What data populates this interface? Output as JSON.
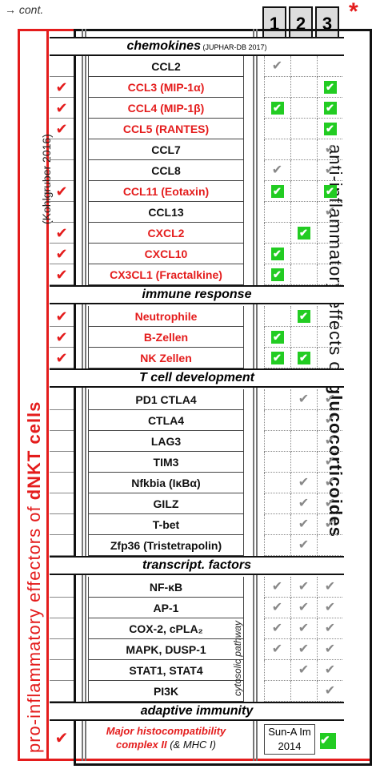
{
  "cont_label": "→ cont.",
  "star": "*",
  "columns": [
    "1",
    "2",
    "3"
  ],
  "left_title_part1": "pro-inflammatory effectors of ",
  "left_title_bold": "dNKT cells",
  "left_source": "(Kohlgruber 2016)",
  "right_title_part1": "anti-inflammatory effects of ",
  "right_title_bold": "glucocorticoides",
  "cytosolic_label": "cytosolic pathway",
  "sections": {
    "chemokines": "chemokines",
    "chemokines_note": "(JUPHAR-DB 2017)",
    "immune": "immune response",
    "tcell": "T cell development",
    "tf": "transcript. factors",
    "adaptive": "adaptive immunity"
  },
  "rows": [
    {
      "name": "CCL2",
      "red": false,
      "dnkt": false,
      "c1": "grey",
      "c2": "",
      "c3": ""
    },
    {
      "name": "CCL3 (MIP-1α)",
      "red": true,
      "dnkt": true,
      "c1": "",
      "c2": "",
      "c3": "green"
    },
    {
      "name": "CCL4 (MIP-1β)",
      "red": true,
      "dnkt": true,
      "c1": "green",
      "c2": "",
      "c3": "green"
    },
    {
      "name": "CCL5 (RANTES)",
      "red": true,
      "dnkt": true,
      "c1": "",
      "c2": "",
      "c3": "green"
    },
    {
      "name": "CCL7",
      "red": false,
      "dnkt": false,
      "c1": "",
      "c2": "",
      "c3": "grey"
    },
    {
      "name": "CCL8",
      "red": false,
      "dnkt": false,
      "c1": "grey",
      "c2": "",
      "c3": "grey"
    },
    {
      "name": "CCL11 (Eotaxin)",
      "red": true,
      "dnkt": true,
      "c1": "green",
      "c2": "",
      "c3": "green"
    },
    {
      "name": "CCL13",
      "red": false,
      "dnkt": false,
      "c1": "",
      "c2": "",
      "c3": "grey"
    },
    {
      "name": "CXCL2",
      "red": true,
      "dnkt": true,
      "c1": "",
      "c2": "green",
      "c3": ""
    },
    {
      "name": "CXCL10",
      "red": true,
      "dnkt": true,
      "c1": "green",
      "c2": "",
      "c3": ""
    },
    {
      "name": "CX3CL1 (Fractalkine)",
      "red": true,
      "dnkt": true,
      "c1": "green",
      "c2": "",
      "c3": ""
    },
    {
      "name": "Neutrophile",
      "red": true,
      "dnkt": true,
      "c1": "",
      "c2": "green",
      "c3": ""
    },
    {
      "name": "B-Zellen",
      "red": true,
      "dnkt": true,
      "c1": "green",
      "c2": "",
      "c3": ""
    },
    {
      "name": "NK Zellen",
      "red": true,
      "dnkt": true,
      "c1": "green",
      "c2": "green",
      "c3": ""
    },
    {
      "name": "PD1 CTLA4",
      "red": false,
      "dnkt": false,
      "c1": "",
      "c2": "grey",
      "c3": "grey"
    },
    {
      "name": "CTLA4",
      "red": false,
      "dnkt": false,
      "c1": "",
      "c2": "",
      "c3": "grey"
    },
    {
      "name": "LAG3",
      "red": false,
      "dnkt": false,
      "c1": "",
      "c2": "",
      "c3": "grey"
    },
    {
      "name": "TIM3",
      "red": false,
      "dnkt": false,
      "c1": "",
      "c2": "",
      "c3": "grey"
    },
    {
      "name": "Nfkbia (IκBα)",
      "red": false,
      "dnkt": false,
      "c1": "",
      "c2": "grey",
      "c3": "grey"
    },
    {
      "name": "GILZ",
      "red": false,
      "dnkt": false,
      "c1": "",
      "c2": "grey",
      "c3": "grey"
    },
    {
      "name": "T-bet",
      "red": false,
      "dnkt": false,
      "c1": "",
      "c2": "grey",
      "c3": "grey"
    },
    {
      "name": "Zfp36 (Tristetrapolin)",
      "red": false,
      "dnkt": false,
      "c1": "",
      "c2": "grey",
      "c3": ""
    },
    {
      "name": "NF-κB",
      "red": false,
      "dnkt": false,
      "c1": "grey",
      "c2": "grey",
      "c3": "grey"
    },
    {
      "name": "AP-1",
      "red": false,
      "dnkt": false,
      "c1": "grey",
      "c2": "grey",
      "c3": "grey"
    },
    {
      "name": "COX-2, cPLA₂",
      "red": false,
      "dnkt": false,
      "c1": "grey",
      "c2": "grey",
      "c3": "grey"
    },
    {
      "name": "MAPK, DUSP-1",
      "red": false,
      "dnkt": false,
      "c1": "grey",
      "c2": "grey",
      "c3": "grey"
    },
    {
      "name": "STAT1, STAT4",
      "red": false,
      "dnkt": false,
      "c1": "",
      "c2": "grey",
      "c3": "grey"
    },
    {
      "name": "PI3K",
      "red": false,
      "dnkt": false,
      "c1": "",
      "c2": "",
      "c3": "grey"
    }
  ],
  "last_row": {
    "name_red": "Major histocompatibility complex II",
    "name_black": "(& MHC I)",
    "dnkt": true,
    "ref_line1": "Sun-A Im",
    "ref_line2": "2014",
    "c3": "green"
  },
  "colors": {
    "red": "#e41c1c",
    "green": "#22cc22",
    "grey": "#888888"
  }
}
